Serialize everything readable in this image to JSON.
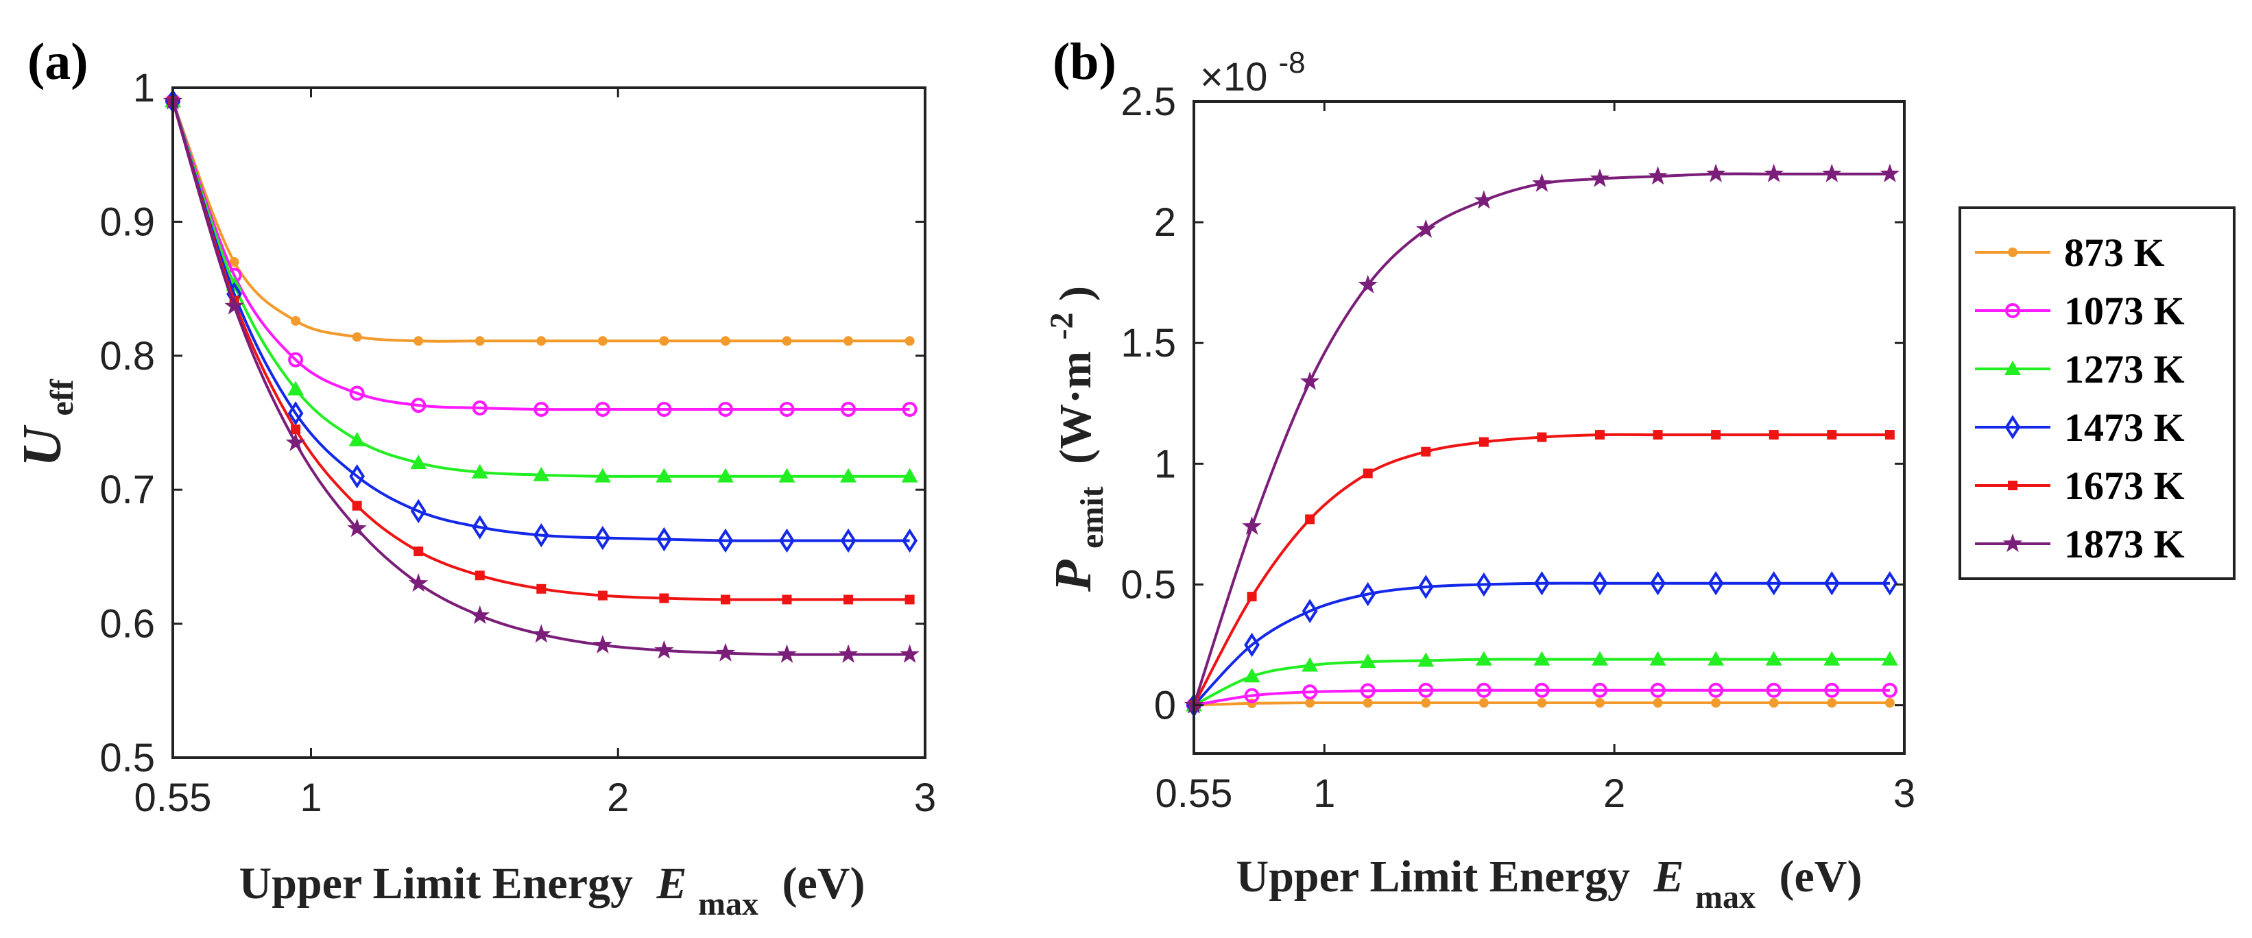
{
  "legend": {
    "entries": [
      {
        "label": "873 K",
        "color": "#F39A2C",
        "marker": "dot"
      },
      {
        "label": "1073 K",
        "color": "#FF19FF",
        "marker": "circle"
      },
      {
        "label": "1273 K",
        "color": "#22EE22",
        "marker": "triangle"
      },
      {
        "label": "1473 K",
        "color": "#1428E8",
        "marker": "diamond"
      },
      {
        "label": "1673 K",
        "color": "#EE1414",
        "marker": "square"
      },
      {
        "label": "1873 K",
        "color": "#7B1E7A",
        "marker": "star"
      }
    ]
  },
  "chart_data": [
    {
      "type": "line",
      "panel_label": "(a)",
      "title": "",
      "xlabel": "Upper Limit Energy",
      "xlabel_symbol": "E",
      "xlabel_subscript": "max",
      "xlabel_unit": "(eV)",
      "ylabel_symbol": "U",
      "ylabel_subscript": "eff",
      "xlim": [
        0.55,
        3
      ],
      "ylim": [
        0.5,
        1
      ],
      "xticks": [
        0.55,
        1,
        2,
        3
      ],
      "xtick_labels": [
        "0.55",
        "1",
        "2",
        "3"
      ],
      "yticks": [
        0.5,
        0.6,
        0.7,
        0.8,
        0.9,
        1
      ],
      "ytick_labels": [
        "0.5",
        "0.6",
        "0.7",
        "0.8",
        "0.9",
        "1"
      ],
      "grid": false,
      "x": [
        0.55,
        0.75,
        0.95,
        1.15,
        1.35,
        1.55,
        1.75,
        1.95,
        2.15,
        2.35,
        2.55,
        2.75,
        2.95
      ],
      "series": [
        {
          "name": "873 K",
          "values": [
            0.99,
            0.87,
            0.826,
            0.814,
            0.811,
            0.811,
            0.811,
            0.811,
            0.811,
            0.811,
            0.811,
            0.811,
            0.811
          ]
        },
        {
          "name": "1073 K",
          "values": [
            0.99,
            0.86,
            0.797,
            0.772,
            0.763,
            0.761,
            0.76,
            0.76,
            0.76,
            0.76,
            0.76,
            0.76,
            0.76
          ]
        },
        {
          "name": "1273 K",
          "values": [
            0.99,
            0.853,
            0.775,
            0.737,
            0.72,
            0.713,
            0.711,
            0.71,
            0.71,
            0.71,
            0.71,
            0.71,
            0.71
          ]
        },
        {
          "name": "1473 K",
          "values": [
            0.99,
            0.846,
            0.757,
            0.71,
            0.684,
            0.672,
            0.666,
            0.664,
            0.663,
            0.662,
            0.662,
            0.662,
            0.662
          ]
        },
        {
          "name": "1673 K",
          "values": [
            0.99,
            0.841,
            0.745,
            0.688,
            0.654,
            0.636,
            0.626,
            0.621,
            0.619,
            0.618,
            0.618,
            0.618,
            0.618
          ]
        },
        {
          "name": "1873 K",
          "values": [
            0.99,
            0.837,
            0.735,
            0.671,
            0.63,
            0.606,
            0.592,
            0.584,
            0.58,
            0.578,
            0.577,
            0.577,
            0.577
          ]
        }
      ]
    },
    {
      "type": "line",
      "panel_label": "(b)",
      "title": "",
      "xlabel": "Upper Limit Energy",
      "xlabel_symbol": "E",
      "xlabel_subscript": "max",
      "xlabel_unit": "(eV)",
      "ylabel_symbol": "P",
      "ylabel_subscript": "emit",
      "ylabel_unit_open": "(W·m",
      "ylabel_unit_exp": "-2",
      "ylabel_unit_close": ")",
      "scale_base": "×10",
      "scale_exp": "-8",
      "xlim": [
        0.55,
        3
      ],
      "ylim": [
        -0.2,
        2.5
      ],
      "xticks": [
        0.55,
        1,
        2,
        3
      ],
      "xtick_labels": [
        "0.55",
        "1",
        "2",
        "3"
      ],
      "yticks": [
        0,
        0.5,
        1,
        1.5,
        2,
        2.5
      ],
      "ytick_labels": [
        "0",
        "0.5",
        "1",
        "1.5",
        "2",
        "2.5"
      ],
      "grid": false,
      "x": [
        0.55,
        0.75,
        0.95,
        1.15,
        1.35,
        1.55,
        1.75,
        1.95,
        2.15,
        2.35,
        2.55,
        2.75,
        2.95
      ],
      "series": [
        {
          "name": "873 K",
          "values": [
            0.0,
            0.008,
            0.01,
            0.01,
            0.01,
            0.01,
            0.01,
            0.01,
            0.01,
            0.01,
            0.01,
            0.01,
            0.01
          ]
        },
        {
          "name": "1073 K",
          "values": [
            0.0,
            0.04,
            0.055,
            0.06,
            0.062,
            0.062,
            0.062,
            0.062,
            0.062,
            0.062,
            0.062,
            0.062,
            0.062
          ]
        },
        {
          "name": "1273 K",
          "values": [
            0.0,
            0.12,
            0.165,
            0.18,
            0.185,
            0.19,
            0.19,
            0.19,
            0.19,
            0.19,
            0.19,
            0.19,
            0.19
          ]
        },
        {
          "name": "1473 K",
          "values": [
            0.0,
            0.25,
            0.39,
            0.46,
            0.49,
            0.5,
            0.505,
            0.505,
            0.505,
            0.505,
            0.505,
            0.505,
            0.505
          ]
        },
        {
          "name": "1673 K",
          "values": [
            0.0,
            0.45,
            0.77,
            0.96,
            1.05,
            1.09,
            1.11,
            1.12,
            1.12,
            1.12,
            1.12,
            1.12,
            1.12
          ]
        },
        {
          "name": "1873 K",
          "values": [
            0.0,
            0.74,
            1.34,
            1.74,
            1.97,
            2.09,
            2.16,
            2.18,
            2.19,
            2.2,
            2.2,
            2.2,
            2.2
          ]
        }
      ]
    }
  ]
}
